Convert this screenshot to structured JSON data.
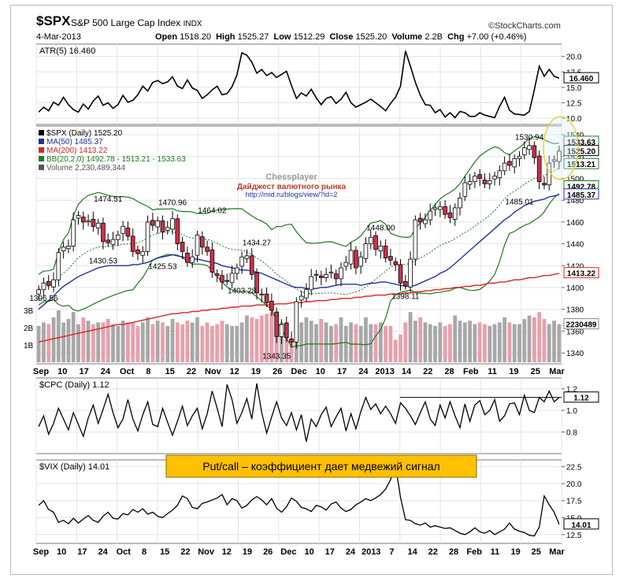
{
  "header": {
    "symbol": "$SPX",
    "name": "S&P 500 Large Cap Index",
    "exchange": "INDX",
    "date": "4-Mar-2013",
    "brand": "©StockCharts.com",
    "open_label": "Open",
    "open": "1518.20",
    "high_label": "High",
    "high": "1525.27",
    "low_label": "Low",
    "low": "1512.29",
    "close_label": "Close",
    "close": "1525.20",
    "volume_label": "Volume",
    "volume": "2.2B",
    "chg_label": "Chg",
    "chg": "+7.00 (+0.46%)"
  },
  "annotation": {
    "text": "Put/call – коэффициент дает медвежий сигнал",
    "bg": "#ffc000"
  },
  "watermark": {
    "title": "Chessplayer",
    "subtitle": "Дайджест валютного рынка",
    "url": "http://mid.ru/blogs/view/?id=2"
  },
  "colors": {
    "ma50": "#2031a0",
    "ma200": "#e02020",
    "bb": "#1b7a1b",
    "up": "#ffffff",
    "down": "#d0304b",
    "vol_up": "#a8a8a8",
    "vol_down": "#e8a0ac"
  },
  "chart_data": [
    {
      "type": "line",
      "title": "ATR(5) 16.460",
      "ylim": [
        9,
        22
      ],
      "yticks": [
        "20.0",
        "17.5",
        "15.0",
        "12.5",
        "10.0"
      ],
      "last_label": "16.460",
      "values": [
        11.0,
        11.8,
        11.2,
        12.6,
        12.1,
        13.4,
        12.2,
        11.4,
        11.0,
        12.3,
        11.5,
        12.8,
        13.6,
        12.1,
        12.5,
        11.6,
        12.2,
        13.7,
        12.6,
        12.9,
        13.8,
        15.2,
        14.4,
        15.8,
        16.1,
        15.6,
        15.9,
        16.7,
        15.2,
        14.8,
        16.2,
        14.9,
        14.5,
        13.2,
        13.8,
        14.6,
        15.2,
        13.8,
        14.0,
        15.1,
        17.0,
        20.6,
        20.2,
        19.1,
        17.3,
        17.9,
        16.9,
        17.4,
        16.6,
        17.1,
        17.6,
        15.3,
        13.2,
        14.1,
        13.6,
        14.7,
        13.3,
        12.2,
        13.2,
        13.5,
        12.4,
        13.1,
        14.2,
        12.5,
        11.8,
        12.2,
        12.6,
        13.1,
        12.5,
        11.9,
        11.2,
        12.4,
        13.4,
        15.2,
        20.9,
        18.4,
        15.8,
        13.7,
        12.2,
        12.1,
        10.9,
        11.4,
        10.2,
        10.9,
        10.1,
        11.1,
        10.9,
        10.3,
        10.3,
        10.9,
        10.5,
        10.3,
        10.1,
        11.9,
        13.4,
        11.3,
        10.7,
        10.6,
        10.5,
        11.1,
        14.6,
        18.4,
        16.8,
        17.9,
        16.8,
        16.5
      ]
    },
    {
      "type": "candlestick",
      "title": "$SPX (Daily) 1525.20",
      "ylim": [
        1330,
        1548
      ],
      "yticks": [
        "1340",
        "1360",
        "1380",
        "1400",
        "1420",
        "1440",
        "1460",
        "1480",
        "1500",
        "1520",
        "1540"
      ],
      "x_ticks": [
        "Sep",
        "10",
        "17",
        "24",
        "Oct",
        "8",
        "15",
        "22",
        "Nov",
        "12",
        "19",
        "26",
        "Dec",
        "10",
        "17",
        "24",
        "2013",
        "14",
        "22",
        "28",
        "Feb",
        "11",
        "19",
        "25",
        "Mar"
      ],
      "legend": [
        "$SPX (Daily) 1525.20",
        "MA(50) 1485.37",
        "MA(200) 1413.22",
        "BB(20,2.0) 1492.78 - 1513.21 - 1533.63",
        "Volume 2,230,489,344"
      ],
      "right_labels": [
        "1533.63",
        "1525.20",
        "1513.21",
        "1492.78",
        "1485.37",
        "1413.22"
      ],
      "annotations": [
        "1474.51",
        "1470.96",
        "1464.02",
        "1434.27",
        "1430.53",
        "1425.53",
        "1403.28",
        "1396.56",
        "1343.35",
        "1448.00",
        "1398.11",
        "1530.94",
        "1485.01"
      ],
      "volume_axis": [
        "3B",
        "2B",
        "1B"
      ],
      "volume_last": "2230489",
      "close": [
        1398,
        1404,
        1402,
        1407,
        1432,
        1437,
        1438,
        1462,
        1466,
        1460,
        1461,
        1456,
        1459,
        1442,
        1441,
        1444,
        1448,
        1456,
        1447,
        1433,
        1431,
        1433,
        1460,
        1457,
        1461,
        1451,
        1455,
        1463,
        1440,
        1433,
        1423,
        1428,
        1448,
        1437,
        1433,
        1414,
        1411,
        1405,
        1406,
        1413,
        1418,
        1428,
        1429,
        1412,
        1395,
        1394,
        1386,
        1379,
        1355,
        1366,
        1354,
        1350,
        1387,
        1392,
        1398,
        1410,
        1412,
        1409,
        1412,
        1414,
        1408,
        1418,
        1423,
        1434,
        1418,
        1428,
        1440,
        1446,
        1435,
        1438,
        1427,
        1425,
        1421,
        1404,
        1402,
        1426,
        1462,
        1460,
        1462,
        1470,
        1473,
        1474,
        1467,
        1464,
        1473,
        1482,
        1496,
        1497,
        1502,
        1500,
        1495,
        1498,
        1502,
        1507,
        1514,
        1512,
        1518,
        1520,
        1528,
        1530,
        1519,
        1497,
        1494,
        1514,
        1517,
        1525
      ],
      "ma50": [
        1380,
        1384,
        1388,
        1392,
        1397,
        1401,
        1404,
        1407,
        1410,
        1412,
        1414,
        1416,
        1418,
        1419,
        1420,
        1420,
        1420,
        1420,
        1420,
        1421,
        1421,
        1422,
        1423,
        1425,
        1427,
        1428,
        1429,
        1430,
        1429,
        1428,
        1427,
        1426,
        1426,
        1425,
        1424,
        1423,
        1422,
        1420,
        1419,
        1418,
        1417,
        1416,
        1416,
        1415,
        1414,
        1413,
        1411,
        1409,
        1407,
        1405,
        1403,
        1401,
        1400,
        1400,
        1399,
        1399,
        1399,
        1400,
        1400,
        1401,
        1402,
        1403,
        1403,
        1403,
        1403,
        1402,
        1403,
        1404,
        1404,
        1405,
        1405,
        1404,
        1403,
        1402,
        1401,
        1401,
        1402,
        1404,
        1406,
        1408,
        1410,
        1413,
        1415,
        1418,
        1422,
        1426,
        1430,
        1434,
        1438,
        1442,
        1446,
        1450,
        1454,
        1458,
        1462,
        1465,
        1469,
        1472,
        1475,
        1477,
        1479,
        1480,
        1481,
        1483,
        1484,
        1485
      ],
      "ma200": [
        1350,
        1351,
        1352,
        1353,
        1354,
        1355,
        1356,
        1357,
        1358,
        1359,
        1360,
        1361,
        1362,
        1363,
        1364,
        1365,
        1366,
        1366,
        1367,
        1368,
        1369,
        1370,
        1371,
        1372,
        1373,
        1374,
        1375,
        1376,
        1376,
        1377,
        1377,
        1378,
        1378,
        1379,
        1379,
        1380,
        1380,
        1381,
        1381,
        1382,
        1382,
        1383,
        1383,
        1383,
        1384,
        1384,
        1384,
        1384,
        1385,
        1385,
        1385,
        1386,
        1386,
        1386,
        1387,
        1387,
        1388,
        1388,
        1388,
        1389,
        1389,
        1390,
        1390,
        1390,
        1391,
        1391,
        1392,
        1392,
        1393,
        1393,
        1393,
        1394,
        1394,
        1394,
        1395,
        1395,
        1396,
        1396,
        1397,
        1397,
        1398,
        1398,
        1399,
        1399,
        1400,
        1400,
        1401,
        1401,
        1402,
        1402,
        1403,
        1404,
        1404,
        1405,
        1405,
        1406,
        1407,
        1407,
        1408,
        1409,
        1409,
        1410,
        1411,
        1411,
        1412,
        1413
      ],
      "volume": [
        2.1,
        2.3,
        2.2,
        2.6,
        3.0,
        2.3,
        2.5,
        2.9,
        2.2,
        2.6,
        2.4,
        2.2,
        2.3,
        2.3,
        2.5,
        2.2,
        2.1,
        2.4,
        2.3,
        2.3,
        2.1,
        2.3,
        2.6,
        2.2,
        2.4,
        2.3,
        2.1,
        2.5,
        2.3,
        2.2,
        2.4,
        2.3,
        2.6,
        2.1,
        2.3,
        2.1,
        2.2,
        2.4,
        2.2,
        2.1,
        2.1,
        2.3,
        2.7,
        2.6,
        2.5,
        2.7,
        2.8,
        2.9,
        2.6,
        2.3,
        2.0,
        1.4,
        2.1,
        2.3,
        2.6,
        2.4,
        2.2,
        2.5,
        2.3,
        2.1,
        2.2,
        2.6,
        2.1,
        2.3,
        2.2,
        2.1,
        2.6,
        2.2,
        2.2,
        2.3,
        2.1,
        2.1,
        1.3,
        1.6,
        2.3,
        2.9,
        2.4,
        2.6,
        2.3,
        2.2,
        2.1,
        2.3,
        2.1,
        2.2,
        2.7,
        2.4,
        2.3,
        2.4,
        2.2,
        2.3,
        2.2,
        2.1,
        2.2,
        2.3,
        2.6,
        2.3,
        2.2,
        2.2,
        2.5,
        2.7,
        2.6,
        2.9,
        2.5,
        2.2,
        2.4,
        2.2
      ]
    },
    {
      "type": "line",
      "title": "$CPC (Daily) 1.12",
      "ylim": [
        0.6,
        1.3
      ],
      "yticks": [
        "1.2",
        "1.0",
        "0.8"
      ],
      "last_label": "1.12",
      "reference_level": 1.12,
      "values": [
        0.85,
        0.95,
        0.78,
        0.88,
        1.02,
        0.92,
        0.82,
        0.98,
        0.87,
        0.76,
        0.93,
        1.05,
        0.88,
        1.01,
        1.15,
        0.98,
        0.84,
        0.92,
        1.1,
        0.92,
        0.81,
        0.96,
        1.08,
        0.87,
        0.85,
        1.02,
        0.89,
        0.77,
        0.9,
        1.04,
        0.86,
        0.95,
        1.02,
        0.83,
        0.97,
        1.18,
        1.02,
        0.85,
        1.24,
        1.1,
        0.88,
        0.98,
        1.11,
        0.92,
        1.25,
        0.98,
        0.79,
        0.94,
        1.08,
        0.93,
        0.86,
        0.98,
        0.82,
        0.96,
        0.71,
        0.92,
        0.85,
        0.96,
        1.03,
        0.85,
        0.94,
        1.02,
        0.81,
        0.97,
        0.83,
        0.99,
        1.12,
        1.01,
        1.06,
        0.97,
        1.04,
        0.97,
        0.88,
        1.07,
        1.02,
        0.95,
        0.87,
        0.98,
        1.08,
        0.92,
        0.86,
        1.05,
        0.93,
        1.08,
        0.95,
        0.84,
        1.06,
        0.9,
        1.05,
        1.09,
        0.96,
        1.0,
        1.1,
        0.9,
        0.95,
        1.06,
        1.07,
        0.96,
        1.14,
        1.0,
        0.98,
        1.12,
        1.08,
        1.18,
        1.08,
        1.12
      ]
    },
    {
      "type": "line",
      "title": "$VIX (Daily) 14.01",
      "ylim": [
        11.2,
        23.5
      ],
      "yticks": [
        "22.5",
        "20.0",
        "17.5",
        "15.0",
        "12.5"
      ],
      "last_label": "14.01",
      "x_ticks": [
        "Sep",
        "10",
        "17",
        "24",
        "Oct",
        "8",
        "15",
        "22",
        "Nov",
        "12",
        "19",
        "26",
        "Dec",
        "10",
        "17",
        "24",
        "2013",
        "7",
        "14",
        "22",
        "28",
        "Feb",
        "11",
        "19",
        "25",
        "Mar"
      ],
      "values": [
        16.8,
        17.5,
        16.2,
        15.8,
        14.3,
        14.6,
        14.1,
        14.9,
        14.2,
        14.8,
        15.3,
        14.6,
        14.3,
        15.2,
        15.8,
        14.9,
        14.8,
        15.6,
        15.4,
        16.2,
        15.8,
        16.3,
        15.5,
        15.8,
        15.2,
        15.0,
        15.6,
        16.1,
        16.8,
        18.2,
        17.8,
        16.5,
        16.3,
        17.1,
        17.3,
        17.6,
        17.9,
        18.4,
        16.9,
        17.8,
        17.5,
        16.4,
        16.8,
        17.6,
        18.1,
        17.6,
        16.9,
        17.8,
        16.4,
        15.8,
        16.6,
        17.9,
        17.4,
        16.5,
        16.3,
        15.9,
        16.8,
        16.6,
        16.1,
        17.0,
        17.3,
        16.4,
        15.9,
        16.2,
        16.9,
        17.3,
        17.8,
        17.5,
        17.9,
        18.4,
        19.2,
        20.6,
        22.7,
        18.0,
        14.7,
        14.6,
        14.1,
        13.9,
        14.2,
        13.6,
        13.8,
        13.6,
        13.4,
        13.5,
        13.1,
        12.7,
        12.5,
        12.9,
        13.5,
        12.9,
        12.7,
        13.1,
        12.5,
        12.9,
        13.3,
        14.2,
        13.3,
        13.0,
        12.8,
        12.4,
        12.3,
        13.6,
        18.2,
        16.9,
        15.8,
        14.01
      ]
    }
  ]
}
